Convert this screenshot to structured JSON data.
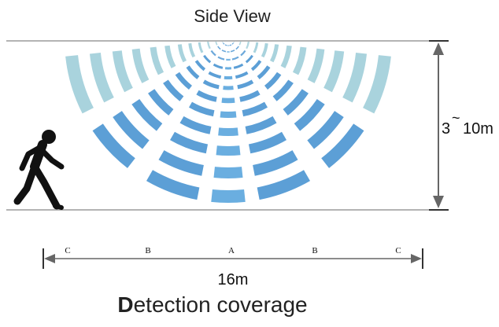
{
  "title": "Side View",
  "height_label_prefix": "3",
  "height_label_tilde": "~",
  "height_label_suffix": "10m",
  "zone_labels": [
    "C",
    "B",
    "A",
    "B",
    "C"
  ],
  "width_label": "16m",
  "caption_first": "D",
  "caption_rest": "etection coverage",
  "icons": {
    "person": "running-person-icon"
  },
  "colors": {
    "line": "#b3b3b3",
    "arrow": "#666666",
    "zone_a": "#6aaee0",
    "zone_b": "#5c9fd6",
    "zone_c": "#a9d3dd"
  }
}
